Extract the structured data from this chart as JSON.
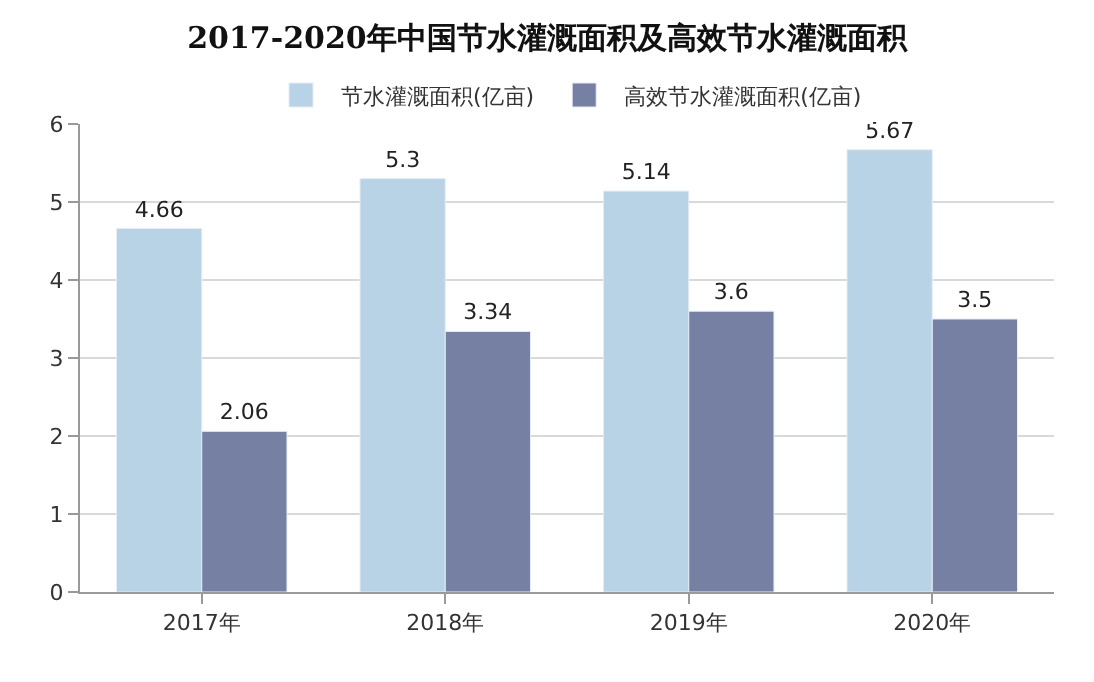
{
  "chart_data": {
    "type": "bar",
    "title": "2017-2020年中国节水灌溉面积及高效节水灌溉面积",
    "categories": [
      "2017年",
      "2018年",
      "2019年",
      "2020年"
    ],
    "series": [
      {
        "name": "节水灌溉面积(亿亩)",
        "color": "#b7d3e5",
        "values": [
          4.66,
          5.3,
          5.14,
          5.67
        ]
      },
      {
        "name": "高效节水灌溉面积(亿亩)",
        "color": "#7580a2",
        "values": [
          2.06,
          3.34,
          3.6,
          3.5
        ]
      }
    ],
    "ylim": [
      0,
      6
    ],
    "yticks": [
      0,
      1,
      2,
      3,
      4,
      5,
      6
    ],
    "grid": "y",
    "legend": "top",
    "data_labels": true
  }
}
